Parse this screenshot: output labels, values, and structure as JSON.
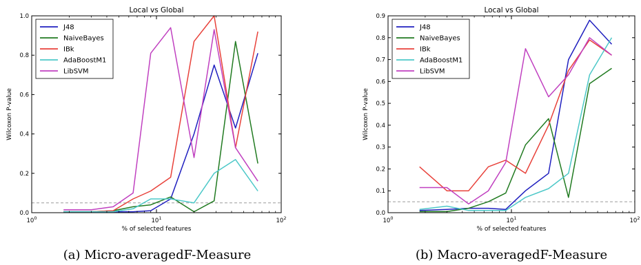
{
  "chart_data": [
    {
      "type": "line",
      "title": "Local vs Global",
      "xlabel": "% of selected features",
      "ylabel": "Wilcoxon P-value",
      "xscale": "log",
      "xlim": [
        1,
        100
      ],
      "ylim": [
        0,
        1.0
      ],
      "xticks": [
        1,
        10,
        100
      ],
      "xtick_labels": [
        {
          "base": "10",
          "exp": "0"
        },
        {
          "base": "10",
          "exp": "1"
        },
        {
          "base": "10",
          "exp": "2"
        }
      ],
      "yticks": [
        0.0,
        0.2,
        0.4,
        0.6,
        0.8,
        1.0
      ],
      "ytick_labels": [
        "0.0",
        "0.2",
        "0.4",
        "0.6",
        "0.8",
        "1.0"
      ],
      "reference_line": 0.05,
      "grid": false,
      "legend_position": "top-left",
      "caption": "(a) Micro-averagedF-Measure",
      "series": [
        {
          "name": "J48",
          "color": "#1f1fbf",
          "x": [
            1.8,
            3.0,
            4.5,
            6.5,
            9.0,
            13.0,
            20.0,
            29.0,
            43.0,
            65.0
          ],
          "y": [
            0.005,
            0.005,
            0.005,
            0.005,
            0.01,
            0.07,
            0.4,
            0.75,
            0.43,
            0.81
          ]
        },
        {
          "name": "NaiveBayes",
          "color": "#207a20",
          "x": [
            1.8,
            3.0,
            4.5,
            6.5,
            9.0,
            13.0,
            20.0,
            29.0,
            43.0,
            65.0
          ],
          "y": [
            0.005,
            0.005,
            0.01,
            0.03,
            0.04,
            0.08,
            0.005,
            0.06,
            0.87,
            0.25
          ]
        },
        {
          "name": "IBk",
          "color": "#e8413a",
          "x": [
            1.8,
            3.0,
            4.5,
            6.5,
            9.0,
            13.0,
            20.0,
            29.0,
            43.0,
            65.0
          ],
          "y": [
            0.005,
            0.005,
            0.01,
            0.07,
            0.11,
            0.18,
            0.87,
            1.0,
            0.33,
            0.92
          ]
        },
        {
          "name": "AdaBoostM1",
          "color": "#4cc8c8",
          "x": [
            1.8,
            3.0,
            4.5,
            6.5,
            9.0,
            13.0,
            20.0,
            29.0,
            43.0,
            65.0
          ],
          "y": [
            0.005,
            0.005,
            0.005,
            0.02,
            0.07,
            0.07,
            0.05,
            0.2,
            0.27,
            0.11
          ]
        },
        {
          "name": "LibSVM",
          "color": "#c040c0",
          "x": [
            1.8,
            3.0,
            4.5,
            6.5,
            9.0,
            13.0,
            20.0,
            29.0,
            43.0,
            65.0
          ],
          "y": [
            0.015,
            0.015,
            0.03,
            0.1,
            0.81,
            0.94,
            0.28,
            0.93,
            0.33,
            0.16
          ]
        }
      ]
    },
    {
      "type": "line",
      "title": "Local vs Global",
      "xlabel": "% of selected features",
      "ylabel": "Wilcoxon P-value",
      "xscale": "log",
      "xlim": [
        1,
        100
      ],
      "ylim": [
        0,
        0.9
      ],
      "xticks": [
        1,
        10,
        100
      ],
      "xtick_labels": [
        {
          "base": "10",
          "exp": "0"
        },
        {
          "base": "10",
          "exp": "1"
        },
        {
          "base": "10",
          "exp": "2"
        }
      ],
      "yticks": [
        0.0,
        0.1,
        0.2,
        0.3,
        0.4,
        0.5,
        0.6,
        0.7,
        0.8,
        0.9
      ],
      "ytick_labels": [
        "0.0",
        "0.1",
        "0.2",
        "0.3",
        "0.4",
        "0.5",
        "0.6",
        "0.7",
        "0.8",
        "0.9"
      ],
      "reference_line": 0.05,
      "grid": false,
      "legend_position": "top-left",
      "caption": "(b) Macro-averagedF-Measure",
      "series": [
        {
          "name": "J48",
          "color": "#1f1fbf",
          "x": [
            1.8,
            3.0,
            4.5,
            6.5,
            9.0,
            13.0,
            20.0,
            29.0,
            43.0,
            65.0
          ],
          "y": [
            0.01,
            0.015,
            0.02,
            0.02,
            0.015,
            0.1,
            0.18,
            0.7,
            0.88,
            0.77
          ]
        },
        {
          "name": "NaiveBayes",
          "color": "#207a20",
          "x": [
            1.8,
            3.0,
            4.5,
            6.5,
            9.0,
            13.0,
            20.0,
            29.0,
            43.0,
            65.0
          ],
          "y": [
            0.005,
            0.005,
            0.02,
            0.05,
            0.09,
            0.31,
            0.43,
            0.07,
            0.59,
            0.66
          ]
        },
        {
          "name": "IBk",
          "color": "#e8413a",
          "x": [
            1.8,
            3.0,
            4.5,
            6.5,
            9.0,
            13.0,
            20.0,
            29.0,
            43.0,
            65.0
          ],
          "y": [
            0.21,
            0.1,
            0.1,
            0.21,
            0.24,
            0.18,
            0.4,
            0.65,
            0.79,
            0.72
          ]
        },
        {
          "name": "AdaBoostM1",
          "color": "#4cc8c8",
          "x": [
            1.8,
            3.0,
            4.5,
            6.5,
            9.0,
            13.0,
            20.0,
            29.0,
            43.0,
            65.0
          ],
          "y": [
            0.015,
            0.03,
            0.01,
            0.01,
            0.01,
            0.07,
            0.11,
            0.18,
            0.63,
            0.8
          ]
        },
        {
          "name": "LibSVM",
          "color": "#c040c0",
          "x": [
            1.8,
            3.0,
            4.5,
            6.5,
            9.0,
            13.0,
            20.0,
            29.0,
            43.0,
            65.0
          ],
          "y": [
            0.115,
            0.115,
            0.04,
            0.1,
            0.23,
            0.75,
            0.53,
            0.63,
            0.8,
            0.72
          ]
        }
      ]
    }
  ]
}
